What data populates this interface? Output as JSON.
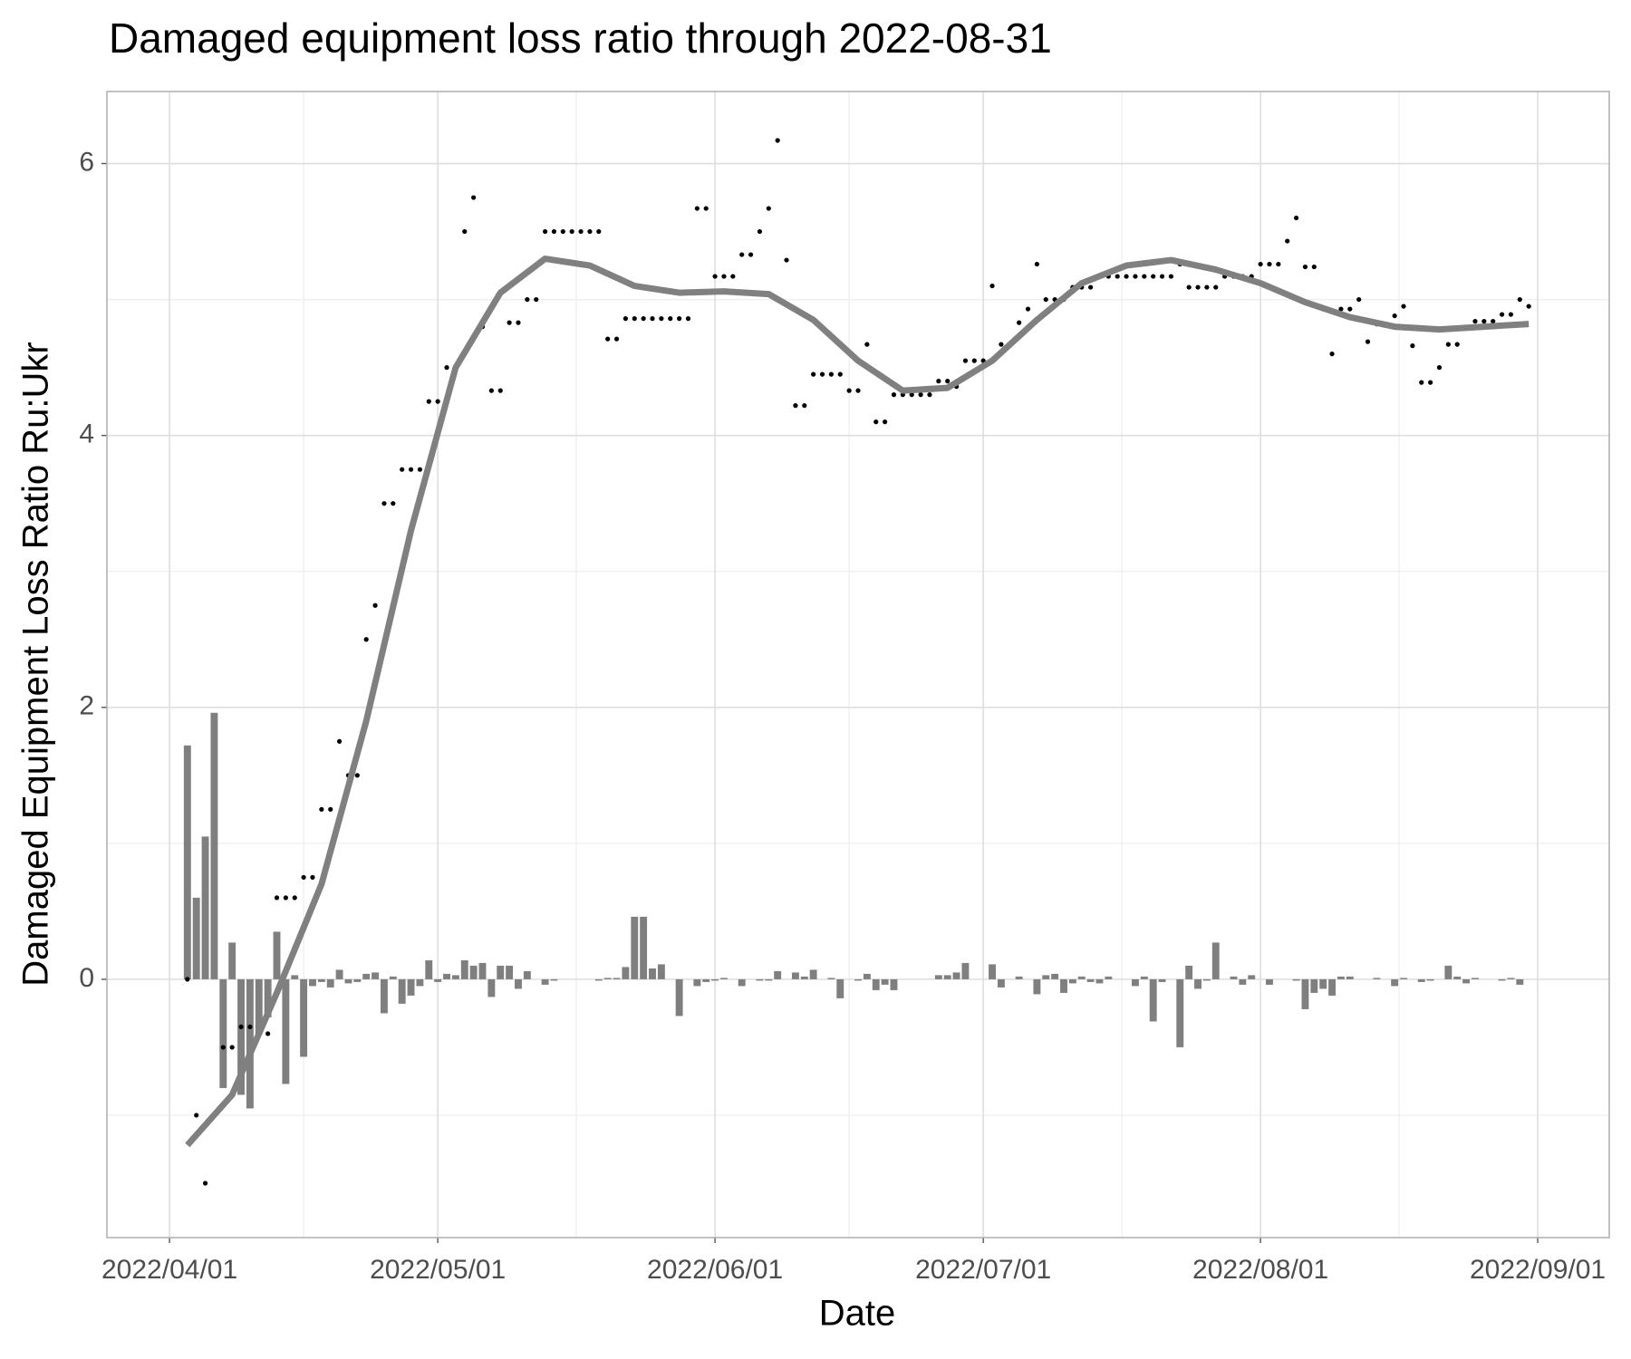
{
  "chart_data": {
    "type": "mixed",
    "title": "Damaged equipment loss ratio through 2022-08-31",
    "x_label": "Date",
    "y_label": "Damaged Equipment Loss Ratio Ru:Ukr",
    "xlim": [
      "2022/03/25",
      "2022/09/09"
    ],
    "xticks": [
      "2022/04/01",
      "2022/05/01",
      "2022/06/01",
      "2022/07/01",
      "2022/08/01",
      "2022/09/01"
    ],
    "ylim": [
      -1.9,
      6.53
    ],
    "yticks": [
      0,
      2,
      4,
      6
    ],
    "grid": true,
    "x": [
      "2022-04-03",
      "2022-04-04",
      "2022-04-05",
      "2022-04-06",
      "2022-04-07",
      "2022-04-08",
      "2022-04-09",
      "2022-04-10",
      "2022-04-11",
      "2022-04-12",
      "2022-04-13",
      "2022-04-14",
      "2022-04-15",
      "2022-04-16",
      "2022-04-17",
      "2022-04-18",
      "2022-04-19",
      "2022-04-20",
      "2022-04-21",
      "2022-04-22",
      "2022-04-23",
      "2022-04-24",
      "2022-04-25",
      "2022-04-26",
      "2022-04-27",
      "2022-04-28",
      "2022-04-29",
      "2022-04-30",
      "2022-05-01",
      "2022-05-02",
      "2022-05-03",
      "2022-05-04",
      "2022-05-05",
      "2022-05-06",
      "2022-05-07",
      "2022-05-08",
      "2022-05-09",
      "2022-05-10",
      "2022-05-11",
      "2022-05-12",
      "2022-05-13",
      "2022-05-14",
      "2022-05-15",
      "2022-05-16",
      "2022-05-17",
      "2022-05-18",
      "2022-05-19",
      "2022-05-20",
      "2022-05-21",
      "2022-05-22",
      "2022-05-23",
      "2022-05-24",
      "2022-05-25",
      "2022-05-26",
      "2022-05-27",
      "2022-05-28",
      "2022-05-29",
      "2022-05-30",
      "2022-05-31",
      "2022-06-01",
      "2022-06-02",
      "2022-06-03",
      "2022-06-04",
      "2022-06-05",
      "2022-06-06",
      "2022-06-07",
      "2022-06-08",
      "2022-06-09",
      "2022-06-10",
      "2022-06-11",
      "2022-06-12",
      "2022-06-13",
      "2022-06-14",
      "2022-06-15",
      "2022-06-16",
      "2022-06-17",
      "2022-06-18",
      "2022-06-19",
      "2022-06-20",
      "2022-06-21",
      "2022-06-22",
      "2022-06-23",
      "2022-06-24",
      "2022-06-25",
      "2022-06-26",
      "2022-06-27",
      "2022-06-28",
      "2022-06-29",
      "2022-06-30",
      "2022-07-01",
      "2022-07-02",
      "2022-07-03",
      "2022-07-04",
      "2022-07-05",
      "2022-07-06",
      "2022-07-07",
      "2022-07-08",
      "2022-07-09",
      "2022-07-10",
      "2022-07-11",
      "2022-07-12",
      "2022-07-13",
      "2022-07-14",
      "2022-07-15",
      "2022-07-16",
      "2022-07-17",
      "2022-07-18",
      "2022-07-19",
      "2022-07-20",
      "2022-07-21",
      "2022-07-22",
      "2022-07-23",
      "2022-07-24",
      "2022-07-25",
      "2022-07-26",
      "2022-07-27",
      "2022-07-28",
      "2022-07-29",
      "2022-07-30",
      "2022-07-31",
      "2022-08-01",
      "2022-08-02",
      "2022-08-03",
      "2022-08-04",
      "2022-08-05",
      "2022-08-06",
      "2022-08-07",
      "2022-08-08",
      "2022-08-09",
      "2022-08-10",
      "2022-08-11",
      "2022-08-12",
      "2022-08-13",
      "2022-08-14",
      "2022-08-15",
      "2022-08-16",
      "2022-08-17",
      "2022-08-18",
      "2022-08-19",
      "2022-08-20",
      "2022-08-21",
      "2022-08-22",
      "2022-08-23",
      "2022-08-24",
      "2022-08-25",
      "2022-08-26",
      "2022-08-27",
      "2022-08-28",
      "2022-08-29",
      "2022-08-30",
      "2022-08-31"
    ],
    "series": [
      {
        "type": "bar",
        "color": "#7f7f7f",
        "values": [
          1.72,
          0.6,
          1.05,
          1.96,
          -0.8,
          0.27,
          -0.85,
          -0.95,
          -0.4,
          -0.28,
          0.35,
          -0.77,
          0.03,
          -0.57,
          -0.05,
          -0.02,
          -0.06,
          0.07,
          -0.03,
          -0.02,
          0.04,
          0.05,
          -0.25,
          0.02,
          -0.18,
          -0.12,
          -0.05,
          0.14,
          -0.02,
          0.04,
          0.03,
          0.14,
          0.1,
          0.12,
          -0.13,
          0.1,
          0.1,
          -0.07,
          0.06,
          0,
          -0.04,
          -0.01,
          0,
          0,
          0,
          0,
          -0.01,
          0.01,
          0.01,
          0.09,
          0.46,
          0.46,
          0.08,
          0.11,
          0,
          -0.27,
          0,
          -0.05,
          -0.02,
          -0.01,
          0.01,
          0,
          -0.05,
          0,
          -0.01,
          -0.01,
          0.06,
          0,
          0.05,
          0.02,
          0.07,
          0,
          0.01,
          -0.14,
          0,
          -0.01,
          0.04,
          -0.08,
          -0.04,
          -0.08,
          0,
          0,
          0,
          0,
          0.03,
          0.03,
          0.05,
          0.12,
          0,
          0,
          0.11,
          -0.06,
          0,
          0.02,
          0,
          -0.11,
          0.03,
          0.04,
          -0.1,
          -0.03,
          0.02,
          -0.02,
          -0.03,
          0.02,
          0,
          0,
          -0.05,
          0.02,
          -0.31,
          -0.02,
          0,
          -0.5,
          0.1,
          -0.07,
          -0.01,
          0.27,
          0,
          0.02,
          -0.04,
          0.03,
          0,
          -0.04,
          0,
          0,
          -0.01,
          -0.22,
          -0.1,
          -0.07,
          -0.12,
          0.02,
          0.02,
          0,
          0,
          0.01,
          0,
          -0.05,
          0.01,
          0,
          -0.02,
          -0.01,
          0,
          0.1,
          0.02,
          -0.03,
          0.01,
          0,
          0,
          -0.01,
          0.01,
          -0.04,
          0
        ]
      },
      {
        "type": "scatter",
        "color": "#000000",
        "values": [
          0,
          -1,
          -1.5,
          -1,
          -0.5,
          -0.5,
          -0.35,
          -0.35,
          -0.4,
          -0.4,
          0.6,
          0.6,
          0.6,
          0.75,
          0.75,
          1.25,
          1.25,
          1.75,
          1.5,
          1.5,
          2.5,
          2.75,
          3.5,
          3.5,
          3.75,
          3.75,
          3.75,
          4.25,
          4.25,
          4.5,
          4.5,
          5.5,
          5.75,
          4.8,
          4.33,
          4.33,
          4.83,
          4.83,
          5,
          5,
          5.5,
          5.5,
          5.5,
          5.5,
          5.5,
          5.5,
          5.5,
          4.71,
          4.71,
          4.86,
          4.86,
          4.86,
          4.86,
          4.86,
          4.86,
          4.86,
          4.86,
          5.67,
          5.67,
          5.17,
          5.17,
          5.17,
          5.33,
          5.33,
          5.5,
          5.67,
          6.17,
          5.29,
          4.22,
          4.22,
          4.45,
          4.45,
          4.45,
          4.45,
          4.33,
          4.33,
          4.67,
          4.1,
          4.1,
          4.3,
          4.3,
          4.3,
          4.3,
          4.3,
          4.4,
          4.4,
          4.36,
          4.55,
          4.55,
          4.55,
          5.1,
          4.67,
          4.67,
          4.83,
          4.93,
          5.26,
          5,
          5,
          5,
          5.09,
          5.09,
          5.09,
          5.17,
          5.17,
          5.17,
          5.17,
          5.17,
          5.17,
          5.17,
          5.17,
          5.17,
          5.26,
          5.09,
          5.09,
          5.09,
          5.09,
          5.17,
          5.17,
          5.17,
          5.17,
          5.26,
          5.26,
          5.26,
          5.43,
          5.6,
          5.24,
          5.24,
          4.93,
          4.6,
          4.93,
          4.93,
          5,
          4.69,
          4.82,
          4.82,
          4.88,
          4.95,
          4.66,
          4.39,
          4.39,
          4.5,
          4.67,
          4.67,
          4.79,
          4.84,
          4.84,
          4.84,
          4.89,
          4.89,
          5,
          4.95
        ]
      },
      {
        "type": "line",
        "color": "#808080",
        "x": [
          "2022-04-03",
          "2022-04-08",
          "2022-04-13",
          "2022-04-18",
          "2022-04-23",
          "2022-04-28",
          "2022-05-03",
          "2022-05-08",
          "2022-05-13",
          "2022-05-18",
          "2022-05-23",
          "2022-05-28",
          "2022-06-02",
          "2022-06-07",
          "2022-06-12",
          "2022-06-17",
          "2022-06-22",
          "2022-06-27",
          "2022-07-02",
          "2022-07-07",
          "2022-07-12",
          "2022-07-17",
          "2022-07-22",
          "2022-07-27",
          "2022-08-01",
          "2022-08-06",
          "2022-08-11",
          "2022-08-16",
          "2022-08-21",
          "2022-08-26",
          "2022-08-31"
        ],
        "values": [
          -1.22,
          -0.85,
          -0.1,
          0.7,
          1.9,
          3.3,
          4.5,
          5.05,
          5.3,
          5.25,
          5.1,
          5.05,
          5.06,
          5.04,
          4.85,
          4.55,
          4.33,
          4.35,
          4.55,
          4.85,
          5.12,
          5.25,
          5.29,
          5.22,
          5.12,
          4.98,
          4.87,
          4.8,
          4.78,
          4.8,
          4.82
        ]
      }
    ]
  }
}
